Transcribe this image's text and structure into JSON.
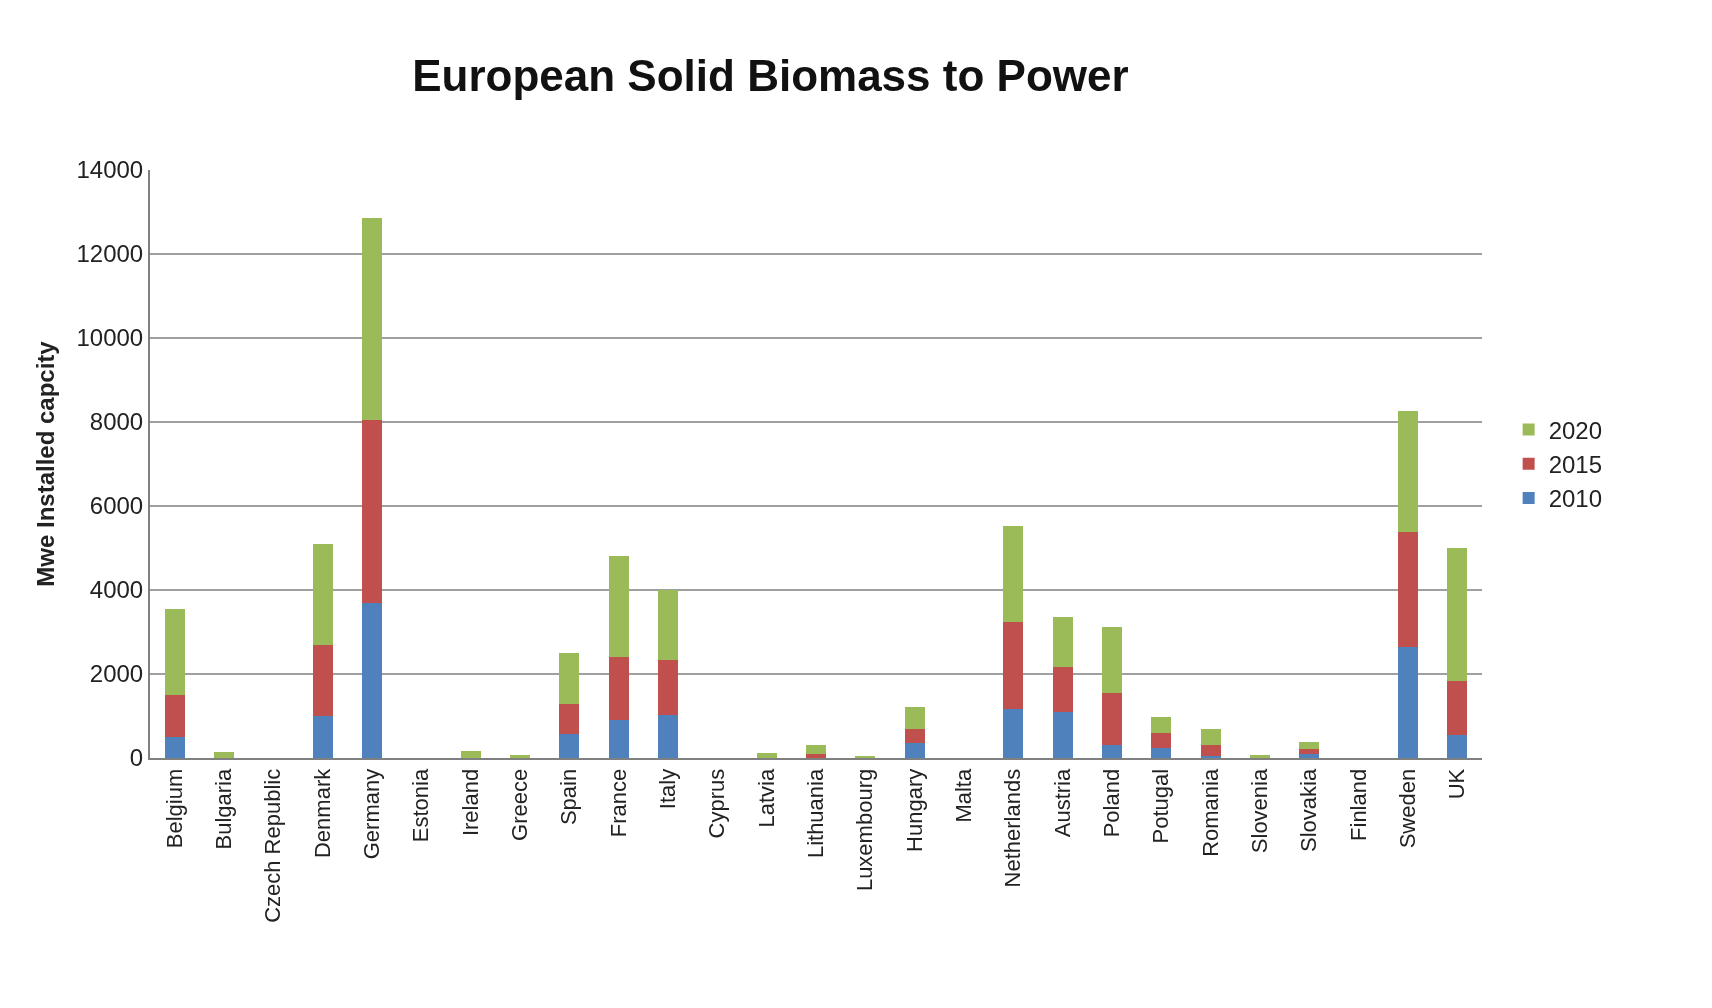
{
  "chart_data": {
    "type": "bar",
    "title": "European Solid Biomass to Power",
    "ylabel": "Mwe Installed capcity",
    "stacked": true,
    "grid": "y",
    "legend": "right",
    "ylim": [
      0,
      14000
    ],
    "yticks": [
      0,
      2000,
      4000,
      6000,
      8000,
      10000,
      12000,
      14000
    ],
    "categories": [
      "Belgium",
      "Bulgaria",
      "Czech Republic",
      "Denmark",
      "Germany",
      "Estonia",
      "Ireland",
      "Greece",
      "Spain",
      "France",
      "Italy",
      "Cyprus",
      "Latvia",
      "Lithuania",
      "Luxembourg",
      "Hungary",
      "Malta",
      "Netherlands",
      "Austria",
      "Poland",
      "Potugal",
      "Romania",
      "Slovenia",
      "Slovakia",
      "Finland",
      "Sweden",
      "UK"
    ],
    "series": [
      {
        "name": "2010",
        "color": "#4f81bd",
        "values": [
          500,
          0,
          0,
          1000,
          3700,
          0,
          0,
          0,
          570,
          900,
          1030,
          0,
          0,
          0,
          0,
          350,
          0,
          1170,
          1090,
          310,
          230,
          40,
          0,
          90,
          0,
          2640,
          540
        ]
      },
      {
        "name": "2015",
        "color": "#c0504d",
        "values": [
          1000,
          0,
          0,
          1700,
          4340,
          0,
          0,
          0,
          720,
          1500,
          1300,
          0,
          0,
          90,
          0,
          350,
          0,
          2070,
          1070,
          1230,
          370,
          260,
          0,
          120,
          0,
          2740,
          1300
        ]
      },
      {
        "name": "2020",
        "color": "#9bbb59",
        "values": [
          2050,
          150,
          0,
          2400,
          4820,
          0,
          170,
          70,
          1210,
          2400,
          1680,
          0,
          120,
          210,
          40,
          510,
          0,
          2290,
          1200,
          1580,
          380,
          380,
          70,
          180,
          0,
          2890,
          3160
        ]
      }
    ]
  }
}
